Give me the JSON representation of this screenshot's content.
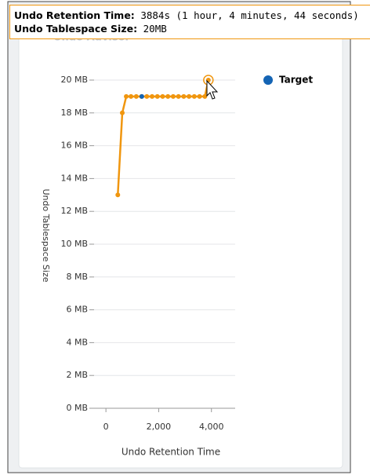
{
  "chart_data": {
    "type": "line",
    "title": "Undo Advisor",
    "xlabel": "Undo Retention Time",
    "ylabel": "Undo Tablespace Size",
    "xlim": [
      -450,
      4900
    ],
    "ylim": [
      0,
      20
    ],
    "xticks": [
      0,
      {
        "value": 2000,
        "label": "2,000"
      },
      {
        "value": 4000,
        "label": "4,000"
      }
    ],
    "yticks": [
      {
        "value": 0,
        "label": "0 MB"
      },
      {
        "value": 2,
        "label": "2 MB"
      },
      {
        "value": 4,
        "label": "4 MB"
      },
      {
        "value": 6,
        "label": "6 MB"
      },
      {
        "value": 8,
        "label": "8 MB"
      },
      {
        "value": 10,
        "label": "10 MB"
      },
      {
        "value": 12,
        "label": "12 MB"
      },
      {
        "value": 14,
        "label": "14 MB"
      },
      {
        "value": 16,
        "label": "16 MB"
      },
      {
        "value": 18,
        "label": "18 MB"
      },
      {
        "value": 20,
        "label": "20 MB"
      }
    ],
    "grid": true,
    "legend": "top-right",
    "series": [
      {
        "color": "#f0960f",
        "x": [
          450,
          620,
          770,
          950,
          1150,
          1350,
          1550,
          1750,
          1950,
          2150,
          2350,
          2550,
          2750,
          2950,
          3150,
          3350,
          3550,
          3750,
          3884
        ],
        "values": [
          13,
          18,
          19,
          19,
          19,
          19,
          19,
          19,
          19,
          19,
          19,
          19,
          19,
          19,
          19,
          19,
          19,
          19,
          20
        ]
      },
      {
        "name": "Target",
        "color": "#1464b4",
        "x": [
          1360
        ],
        "values": [
          19
        ]
      }
    ],
    "tooltip": {
      "rows": [
        {
          "label": "Undo Retention Time:",
          "value": "3884s (1 hour, 4 minutes, 44 seconds)"
        },
        {
          "label": "Undo Tablespace Size:",
          "value": "20MB"
        }
      ]
    }
  }
}
